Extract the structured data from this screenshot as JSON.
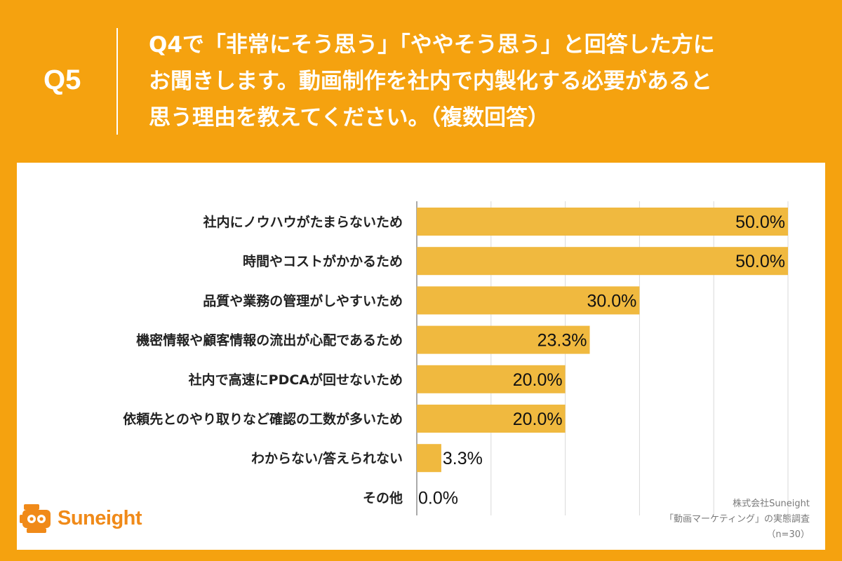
{
  "header": {
    "qnum": "Q5",
    "question_lines": [
      "Q4で「非常にそう思う」「ややそう思う」と回答した方に",
      "お聞きします。動画制作を社内で内製化する必要があると",
      "思う理由を教えてください。（複数回答）"
    ]
  },
  "chart_data": {
    "type": "bar",
    "orientation": "horizontal",
    "categories": [
      "社内にノウハウがたまらないため",
      "時間やコストがかかるため",
      "品質や業務の管理がしやすいため",
      "機密情報や顧客情報の流出が心配であるため",
      "社内で高速にPDCAが回せないため",
      "依頼先とのやり取りなど確認の工数が多いため",
      "わからない/答えられない",
      "その他"
    ],
    "values": [
      50.0,
      50.0,
      30.0,
      23.3,
      20.0,
      20.0,
      3.3,
      0.0
    ],
    "value_labels": [
      "50.0%",
      "50.0%",
      "30.0%",
      "23.3%",
      "20.0%",
      "20.0%",
      "3.3%",
      "0.0%"
    ],
    "xlim": [
      0,
      50
    ],
    "grid": true,
    "bar_color": "#f0b93f"
  },
  "footer": {
    "logo_text": "Suneight",
    "credit_lines": [
      "株式会社Suneight",
      "「動画マーケティング」の実態調査",
      "（n=30）"
    ]
  },
  "colors": {
    "background": "#f5a20f",
    "bar": "#f0b93f",
    "logo": "#f08a19"
  }
}
